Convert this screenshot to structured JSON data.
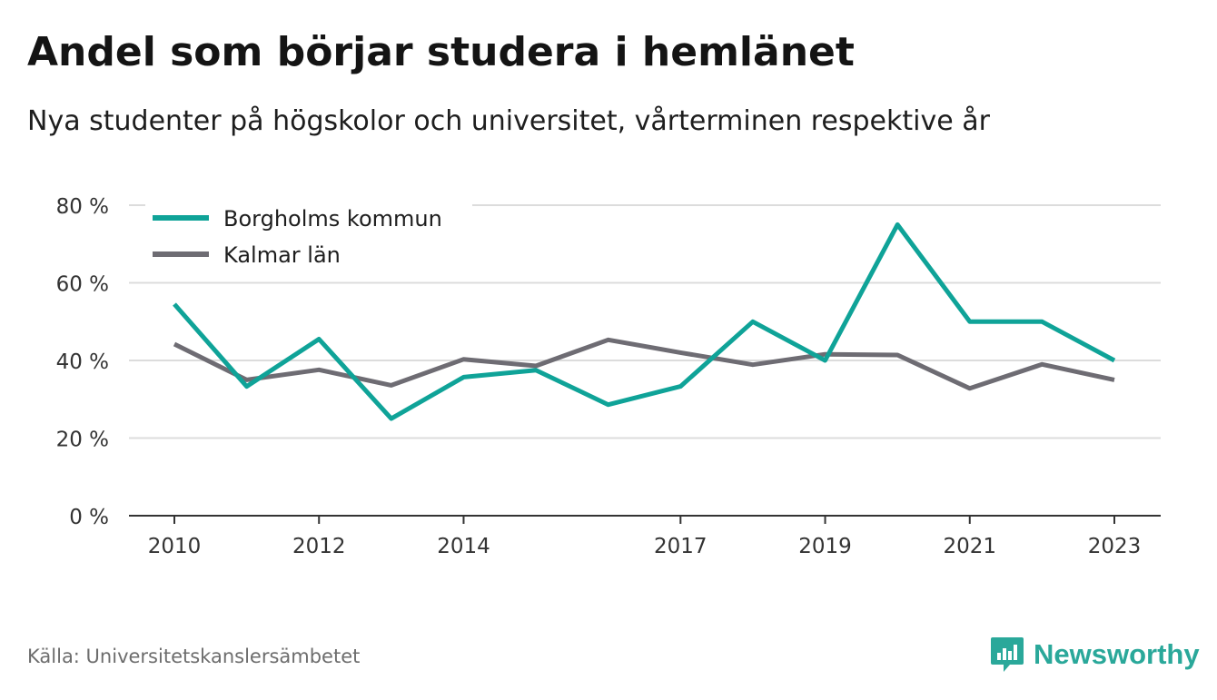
{
  "title": "Andel som börjar studera i hemlänet",
  "subtitle": "Nya studenter på högskolor och universitet, vårterminen respektive år",
  "source": "Källa: Universitetskanslersämbetet",
  "brand": "Newsworthy",
  "colors": {
    "series_1": "#0fa398",
    "series_2": "#6e6c73",
    "grid": "#dcdcdc",
    "axis": "#333333",
    "brand": "#2aa89a"
  },
  "chart_data": {
    "type": "line",
    "x": [
      2010,
      2011,
      2012,
      2013,
      2014,
      2015,
      2016,
      2017,
      2018,
      2019,
      2020,
      2021,
      2022,
      2023
    ],
    "x_tick_labels": [
      "2010",
      "2012",
      "2014",
      "2017",
      "2019",
      "2021",
      "2023"
    ],
    "x_tick_values": [
      2010,
      2012,
      2014,
      2017,
      2019,
      2021,
      2023
    ],
    "y_ticks": [
      0,
      20,
      40,
      60,
      80
    ],
    "y_tick_labels": [
      "0 %",
      "20 %",
      "40 %",
      "60 %",
      "80 %"
    ],
    "ylim": [
      0,
      80
    ],
    "grid": true,
    "legend_position": "top-left",
    "series": [
      {
        "name": "Borgholms kommun",
        "color": "#0fa398",
        "values": [
          54.5,
          33.3,
          45.5,
          25.0,
          35.7,
          37.5,
          28.6,
          33.3,
          50.0,
          40.0,
          75.0,
          50.0,
          50.0,
          40.0
        ]
      },
      {
        "name": "Kalmar län",
        "color": "#6e6c73",
        "values": [
          44.2,
          35.0,
          37.6,
          33.6,
          40.3,
          38.6,
          45.3,
          42.0,
          38.9,
          41.6,
          41.4,
          32.8,
          39.0,
          35.0
        ]
      }
    ]
  }
}
